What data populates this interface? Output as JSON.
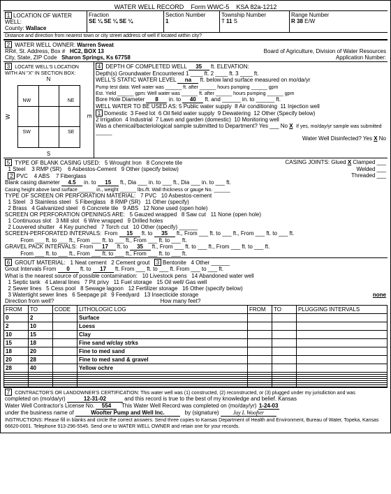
{
  "header": {
    "title": "WATER WELL RECORD",
    "form": "Form WWC-5",
    "ksa": "KSA 82a-1212"
  },
  "loc": {
    "county_label": "County:",
    "county": "Wallace",
    "fraction_label": "Fraction",
    "fraction": "SE ¼ SE ¼ SE ¼",
    "section_label": "Section Number",
    "section": "1",
    "township_label": "Township Number",
    "township": "11",
    "township_dir": "S",
    "range_label": "Range Number",
    "range": "R 38",
    "range_dir": "E/W",
    "distance_label": "Distance and direction from nearest town or city street address of well if located within city?"
  },
  "owner": {
    "label": "WATER WELL OWNER:",
    "name": "Warren Sweat",
    "addr_label": "RR#, St. Address, Box #",
    "addr": "HC2, BOX 13",
    "city_label": "City, State, ZIP Code",
    "city": "Sharon Springs, Ks 67758",
    "board": "Board of Agriculture, Division of Water Resources",
    "app": "Application Number:"
  },
  "sec3": {
    "label": "LOCATE WELL'S LOCATION WITH AN \"X\" IN SECTION BOX:",
    "n": "N",
    "s": "S",
    "e": "E",
    "w": "W",
    "nw": "NW",
    "ne": "NE",
    "sw": "SW",
    "se": "SE"
  },
  "sec4": {
    "depth_label": "DEPTH OF COMPLETED WELL",
    "depth": "35",
    "depth_unit": "ft. ELEVATION:",
    "depths_enc": "Depth(s) Groundwater Encountered",
    "d1": "1",
    "d2": "2",
    "d3": "3",
    "static_label": "WELL'S STATIC WATER LEVEL",
    "static": "na",
    "static_rest": "ft. below land surface measured on mo/da/yr",
    "pump": "Pump test data: Well water was ______ ft. after ______ hours pumping ______ gpm",
    "yield": "Est. Yield ______ gpm: Well water was ______ ft. after ______ hours pumping ______ gpm",
    "bore_label": "Bore Hole Diameter",
    "bore": "8",
    "bore_to": "in. to",
    "bore_depth": "40",
    "bore_rest": "ft. and ______ in. to ______ ft.",
    "use_label": "WELL WATER TO BE USED AS:",
    "u1": "Domestic",
    "u2": "2 Irrigation",
    "u3": "3 Feed lot",
    "u4": "4 Industrial",
    "u5": "5 Public water supply",
    "u6": "6 Oil field water supply",
    "u7": "7 Lawn and garden (domestic)",
    "u8": "8 Air conditioning",
    "u9": "9 Dewatering",
    "u10": "10 Monitoring well",
    "u11": "11 Injection well",
    "u12": "12 Other (Specify below)",
    "chem": "Was a chemical/bacteriological sample submitted to Department? Yes ___ No",
    "chem_x": "X",
    "chem_rest": "If yes, mo/day/yr sample was submitted ______",
    "disinf": "Water Well Disinfected? Yes",
    "disinf_x": "X",
    "disinf_no": "No"
  },
  "sec5": {
    "title": "TYPE OF BLANK CASING USED:",
    "o1": "1 Steel",
    "o2": "PVC",
    "o3": "3 RMP (SR)",
    "o4": "4 ABS",
    "o5": "5 Wrought Iron",
    "o6": "6 Asbestos-Cement",
    "o7": "7 Fiberglass",
    "o8": "8 Concrete tile",
    "o9": "9 Other (specify below)",
    "joints": "CASING JOINTS: Glued",
    "jx": "X",
    "jc": "Clamped ___",
    "jw": "Welded ___",
    "jt": "Threaded ___",
    "dia_label": "Blank casing diameter",
    "dia": "4.5",
    "dia_to": "15",
    "height": "Casing height above land surface ______ in., weight ______ lbs./ft. Wall thickness or gauge No. ______",
    "screen_title": "TYPE OF SCREEN OR PERFORATION MATERIAL:",
    "s1": "1 Steel",
    "s2": "2 Brass",
    "s3": "3 Stainless steel",
    "s4": "4 Galvanized steel",
    "s5": "5 Fiberglass",
    "s6": "6 Concrete tile",
    "s7": "7 PVC",
    "s8": "8 RMP (SR)",
    "s9": "9 ABS",
    "s10": "10 Asbestos-cement",
    "s11": "11 Other (specify)",
    "s12": "12 None used (open hole)",
    "open_title": "SCREEN OR PERFORATION OPENINGS ARE:",
    "p1": "1 Continuous slot",
    "p2": "2 Louvered shutter",
    "p3": "3 Mill slot",
    "p4": "4 Key punched",
    "p5": "5 Gauzed wrapped",
    "p6": "6 Wire wrapped",
    "p7": "7 Torch cut",
    "p8": "8 Saw cut",
    "p9": "9 Drilled holes",
    "p10": "10 Other (specify)",
    "p11": "11 None (open hole)",
    "perf_label": "SCREEN-PERFORATED INTERVALS:",
    "perf_from": "15",
    "perf_to": "35",
    "gravel_label": "GRAVEL PACK INTERVALS:",
    "gravel_from": "17",
    "gravel_to": "35"
  },
  "sec6": {
    "title": "GROUT MATERIAL:",
    "g1": "1 Neat cement",
    "g2": "2 Cement grout",
    "g3": "Bentonite",
    "g4": "4 Other",
    "grout_label": "Grout Intervals From",
    "grout_from": "0",
    "grout_to_label": "ft. to",
    "grout_to": "17",
    "contam": "What is the nearest source of possible contamination:",
    "c1": "1 Septic tank",
    "c2": "2 Sewer lines",
    "c3": "3 Watertight sewer lines",
    "c4": "4 Lateral lines",
    "c5": "5 Cess pool",
    "c6": "6 Seepage pit",
    "c7": "7 Pit privy",
    "c8": "8 Sewage lagoon",
    "c9": "9 Feedyard",
    "c10": "10 Livestock pens",
    "c11": "11 Fuel storage",
    "c12": "12 Fertilizer storage",
    "c13": "13 Insecticide storage",
    "c14": "14 Abandoned water well",
    "c15": "15 Oil well/ Gas well",
    "c16": "16 Other (specify below)",
    "none": "none",
    "dir": "Direction from well?",
    "feet": "How many feet?"
  },
  "log": {
    "h_from": "FROM",
    "h_to": "TO",
    "h_code": "CODE",
    "h_lith": "LITHOLOGIC LOG",
    "h_plug": "PLUGGING INTERVALS",
    "rows": [
      {
        "from": "0",
        "to": "2",
        "lith": "Surface"
      },
      {
        "from": "2",
        "to": "10",
        "lith": "Loess"
      },
      {
        "from": "10",
        "to": "15",
        "lith": "Clay"
      },
      {
        "from": "15",
        "to": "18",
        "lith": "Fine sand w/clay strks"
      },
      {
        "from": "18",
        "to": "20",
        "lith": "Fine to med sand"
      },
      {
        "from": "20",
        "to": "28",
        "lith": "Fine to med sand & gravel"
      },
      {
        "from": "28",
        "to": "40",
        "lith": "Yellow ochre"
      }
    ]
  },
  "sec7": {
    "cert": "CONTRACTOR'S OR LANDOWNER'S CERTIFICATION: This water well was (1) constructed, (2) reconstructed, or (3) plugged under my jurisdiction and was",
    "completed": "completed on (mo/da/yr)",
    "date": "12-31-02",
    "rest": "and this record is true to the best of my knowledge and belief. Kansas",
    "lic_label": "Water Well Contractor's License No.",
    "lic": "554",
    "rec": "This Water Well Record was completed on (mo/day/yr)",
    "rec_date": "1-24-03",
    "biz_label": "under the business name of",
    "biz": "Woofter Pump and Well Inc.",
    "sig_label": "by (signature)",
    "sig": "Jay L Woofter",
    "instr": "INSTRUCTIONS: Please fill in blanks and circle the correct answers. Send three copies to Kansas Department of Health and Environment, Bureau of Water, Topeka, Kansas 66620-0001. Telephone 913-296-5545. Send one to WATER WELL OWNER and retain one for your records."
  }
}
